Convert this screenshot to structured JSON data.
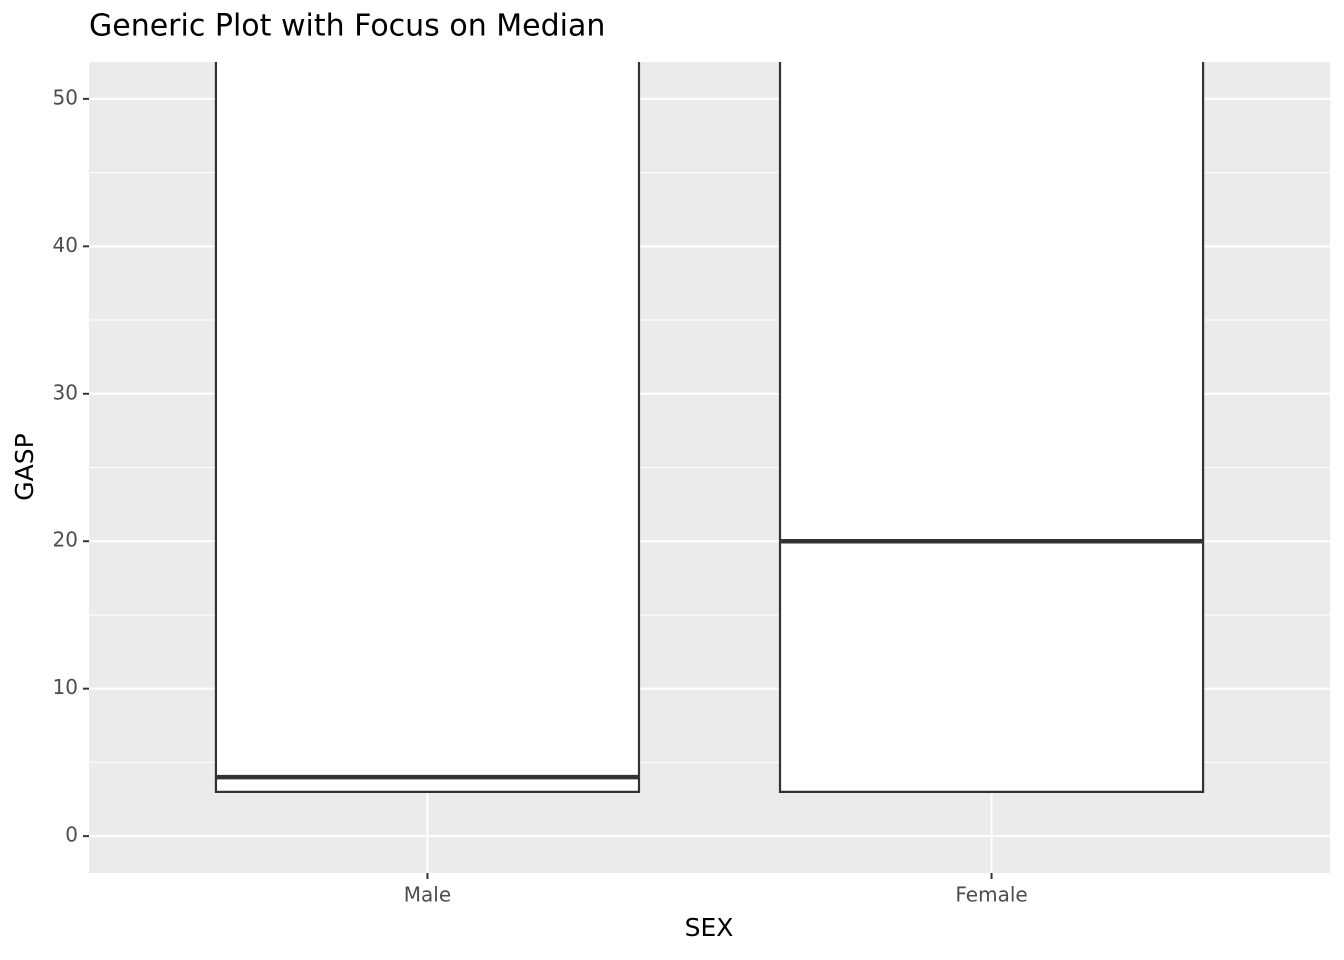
{
  "chart_data": {
    "type": "boxplot",
    "title": "Generic Plot with Focus on Median",
    "x_label": "SEX",
    "y_label": "GASP",
    "categories": [
      "Male",
      "Female"
    ],
    "q1": [
      3,
      3
    ],
    "median": [
      4,
      20
    ],
    "fill": "#ffffff",
    "stroke": "#333333",
    "ylim": [
      -2.5,
      52.5
    ],
    "yticks": [
      0,
      10,
      20,
      30,
      40,
      50
    ],
    "grid": true
  }
}
